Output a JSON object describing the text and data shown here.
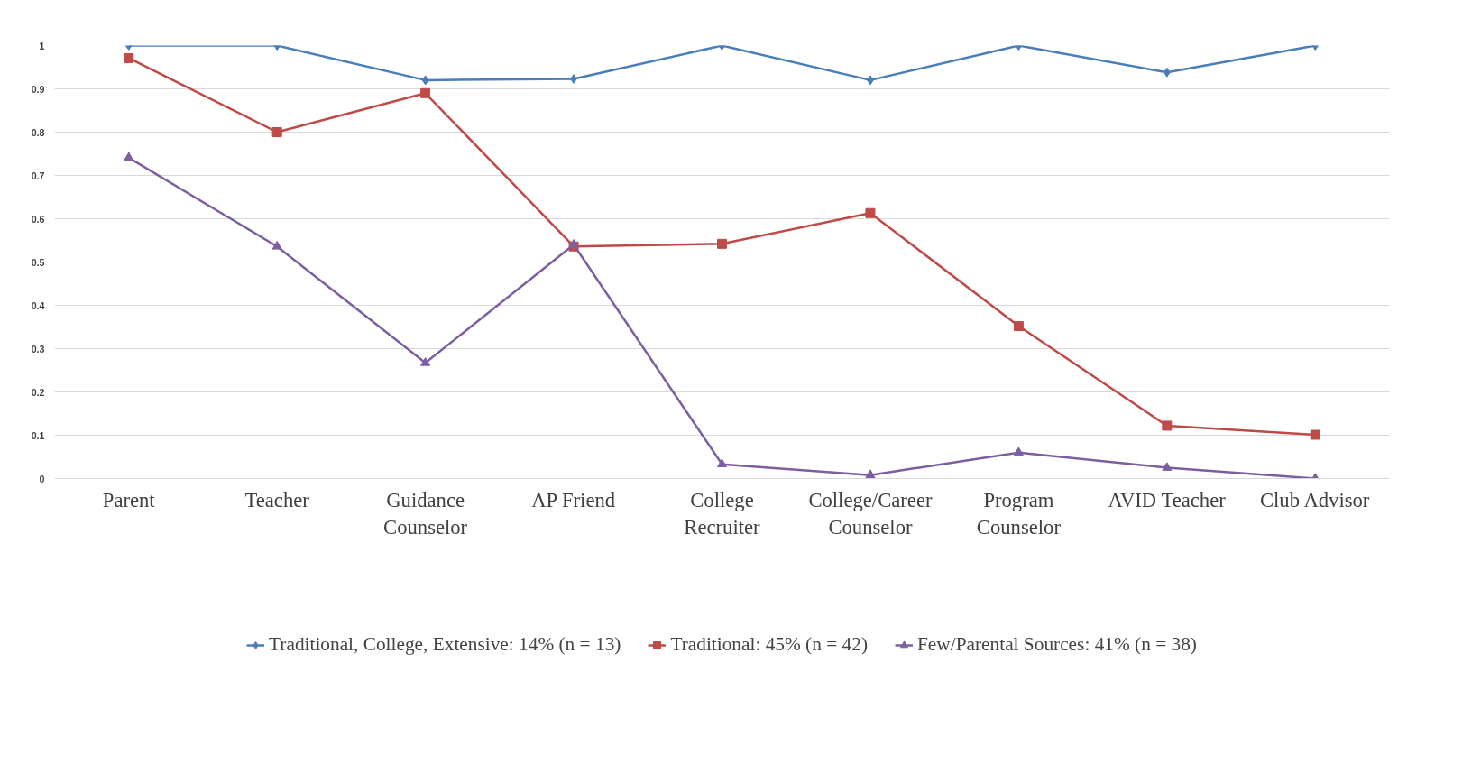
{
  "chart_data": {
    "type": "line",
    "categories": [
      "Parent",
      "Teacher",
      "Guidance\nCounselor",
      "AP Friend",
      "College\nRecruiter",
      "College/Career\nCounselor",
      "Program\nCounselor",
      "AVID Teacher",
      "Club Advisor"
    ],
    "series": [
      {
        "name": "Traditional, College, Extensive: 14% (n = 13)",
        "color": "#4a7ebb",
        "marker": "diamond",
        "values": [
          1,
          1,
          0.92,
          0.923,
          1,
          0.92,
          1,
          0.938,
          1
        ]
      },
      {
        "name": "Traditional: 45% (n = 42)",
        "color": "#be4b48",
        "marker": "square",
        "values": [
          0.971,
          0.8,
          0.89,
          0.536,
          0.542,
          0.613,
          0.352,
          0.122,
          0.101
        ]
      },
      {
        "name": "Few/Parental Sources: 41% (n = 38)",
        "color": "#7d5fa0",
        "marker": "triangle",
        "values": [
          0.741,
          0.536,
          0.267,
          0.54,
          0.033,
          0.008,
          0.06,
          0.025,
          0
        ]
      }
    ],
    "ylim": [
      0,
      1
    ],
    "yticks": [
      0,
      0.1,
      0.2,
      0.3,
      0.4,
      0.5,
      0.6,
      0.7,
      0.8,
      0.9,
      1
    ],
    "grid": "y",
    "legend": "bottom",
    "line_style": "solid"
  }
}
